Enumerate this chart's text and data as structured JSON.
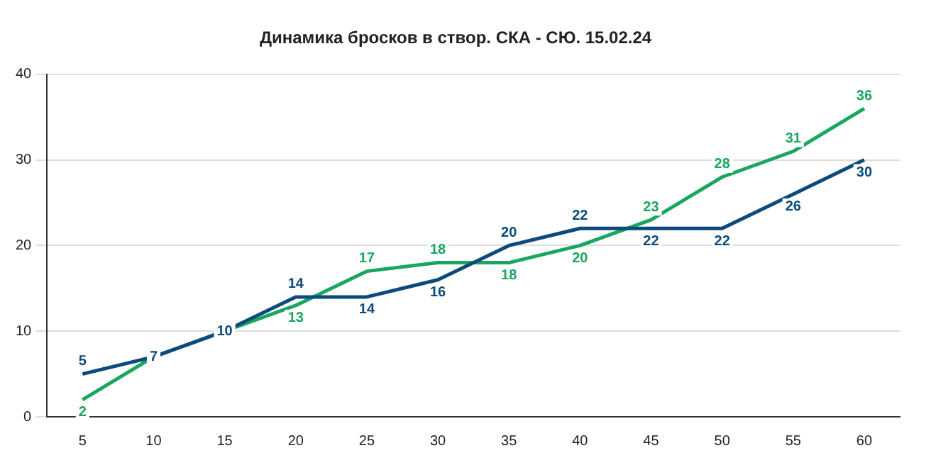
{
  "chart_data": {
    "type": "line",
    "title": "Динамика бросков в створ. СКА - СЮ. 15.02.24",
    "x": [
      5,
      10,
      15,
      20,
      25,
      30,
      35,
      40,
      45,
      50,
      55,
      60
    ],
    "series": [
      {
        "color": "#0b4a7a",
        "values": [
          5,
          7,
          10,
          14,
          14,
          16,
          20,
          22,
          22,
          22,
          26,
          30
        ],
        "value_labels": [
          "5",
          "7",
          "10",
          "14",
          "14",
          "16",
          "20",
          "22",
          "22",
          "22",
          "26",
          "30"
        ]
      },
      {
        "color": "#1aa65e",
        "values": [
          2,
          7,
          10,
          13,
          17,
          18,
          18,
          20,
          23,
          28,
          31,
          36
        ],
        "value_labels": [
          "2",
          null,
          null,
          "13",
          "17",
          "18",
          "18",
          "20",
          "23",
          "28",
          "31",
          "36"
        ]
      }
    ],
    "xlim": [
      2.5,
      62.5
    ],
    "xticks": [
      5,
      10,
      15,
      20,
      25,
      30,
      35,
      40,
      45,
      50,
      55,
      60
    ],
    "ylim": [
      0,
      40
    ],
    "yticks": [
      0,
      10,
      20,
      30,
      40
    ],
    "grid": "y",
    "legend": false,
    "marker": "none",
    "line_style": "solid"
  }
}
